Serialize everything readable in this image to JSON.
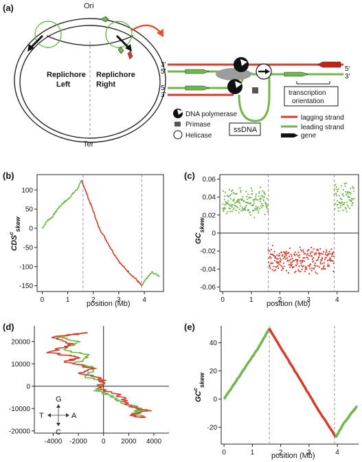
{
  "panels": {
    "a": {
      "letter": "(a)",
      "ori": "Ori",
      "ter": "Ter",
      "replichore_left": [
        "Replichore",
        "Left"
      ],
      "replichore_right": [
        "Replichore",
        "Right"
      ],
      "strand_labels": {
        "top_left_3": "3'",
        "top_left_5": "5'",
        "bot_left_5": "5'",
        "bot_left_3": "3'",
        "right_5": "5'",
        "right_3": "3'"
      },
      "transcription": [
        "transcription",
        "orientation"
      ],
      "ssdna": "ssDNA",
      "legend": {
        "dna_polymerase": "DNA polymerase",
        "primase": "Primase",
        "helicase": "Helicase",
        "lagging": "lagging strand",
        "leading": "leading strand",
        "gene": "gene"
      },
      "colors": {
        "lagging": "#d63a2a",
        "leading": "#6cb84a"
      }
    },
    "b": {
      "letter": "(b)",
      "xlabel": "position (Mb)",
      "ylabel_main": "CDS",
      "ylabel_sup": "c",
      "ylabel_sub": "skew"
    },
    "c": {
      "letter": "(c)",
      "xlabel": "position (Mb)",
      "ylabel_main": "GC",
      "ylabel_sub": "skew"
    },
    "d": {
      "letter": "(d)",
      "compass": {
        "g": "G",
        "t": "T",
        "a": "A",
        "c": "C"
      }
    },
    "e": {
      "letter": "(e)",
      "xlabel": "position (Mb)",
      "ylabel_main": "GC",
      "ylabel_sup": "c",
      "ylabel_sub": "skew"
    }
  },
  "chart_data": [
    {
      "id": "b",
      "type": "line",
      "xlim": [
        -0.2,
        4.75
      ],
      "ylim": [
        -165,
        140
      ],
      "xticks": [
        0,
        1,
        2,
        3,
        4
      ],
      "yticks": [
        -150,
        -100,
        -50,
        0,
        50,
        100
      ],
      "vlines": [
        1.6,
        3.9
      ],
      "series": [
        {
          "color": "#6cb84a",
          "x": [
            0,
            0.2,
            0.4,
            0.6,
            0.8,
            1.0,
            1.2,
            1.4,
            1.55
          ],
          "y": [
            0,
            20,
            30,
            50,
            65,
            75,
            90,
            105,
            125
          ]
        },
        {
          "color": "#d63a2a",
          "x": [
            1.55,
            1.8,
            2.0,
            2.2,
            2.5,
            2.8,
            3.1,
            3.4,
            3.7,
            3.9
          ],
          "y": [
            125,
            80,
            45,
            5,
            -30,
            -65,
            -95,
            -115,
            -135,
            -150
          ]
        },
        {
          "color": "#6cb84a",
          "x": [
            3.9,
            4.1,
            4.3,
            4.6
          ],
          "y": [
            -150,
            -130,
            -115,
            -125
          ]
        }
      ]
    },
    {
      "id": "c",
      "type": "scatter",
      "xlim": [
        -0.1,
        4.75
      ],
      "ylim": [
        -0.065,
        0.065
      ],
      "xticks": [
        0,
        1,
        2,
        3,
        4
      ],
      "yticks": [
        -0.06,
        -0.04,
        -0.02,
        0,
        0.02,
        0.04,
        0.06
      ],
      "vlines": [
        1.6,
        3.9
      ],
      "bands": [
        {
          "color": "#6cb84a",
          "x_from": 0.0,
          "x_to": 1.6,
          "mean": 0.035,
          "spread": 0.018
        },
        {
          "color": "#d63a2a",
          "x_from": 1.6,
          "x_to": 3.9,
          "mean": -0.03,
          "spread": 0.017
        },
        {
          "color": "#6cb84a",
          "x_from": 3.9,
          "x_to": 4.6,
          "mean": 0.04,
          "spread": 0.018
        }
      ]
    },
    {
      "id": "d",
      "type": "line",
      "xlim": [
        -5500,
        5200
      ],
      "ylim": [
        -21000,
        27000
      ],
      "xticks": [
        -4000,
        -2000,
        0,
        2000,
        4000
      ],
      "yticks": [
        -20000,
        -10000,
        0,
        10000,
        20000
      ],
      "series": [
        {
          "color": "#6cb84a",
          "x": [
            -1500,
            -3500,
            -2000,
            -3200,
            -1000,
            -2200,
            -500,
            -1500,
            200,
            -500,
            800,
            1800,
            3000,
            2500,
            3200
          ],
          "y": [
            24000,
            22000,
            20000,
            16000,
            14000,
            10000,
            8000,
            4000,
            2000,
            -2000,
            -5000,
            -8000,
            -10000,
            -12000,
            -14000
          ]
        },
        {
          "color": "#d63a2a",
          "x": [
            -1200,
            -4000,
            -2500,
            -4200,
            -2000,
            -3000,
            -1000,
            -1800,
            0,
            -300,
            1200,
            2200,
            3500,
            2000,
            3300
          ],
          "y": [
            24000,
            22000,
            19000,
            15000,
            13000,
            11000,
            8000,
            6000,
            3000,
            -1000,
            -4000,
            -9000,
            -11000,
            -13000,
            -14000
          ]
        }
      ]
    },
    {
      "id": "e",
      "type": "line",
      "xlim": [
        -0.1,
        4.75
      ],
      "ylim": [
        -32,
        52
      ],
      "xticks": [
        0,
        1,
        2,
        3,
        4
      ],
      "yticks": [
        -20,
        0,
        20,
        40
      ],
      "vlines": [
        1.6,
        3.9
      ],
      "series": [
        {
          "color": "#6cb84a",
          "x": [
            0,
            0.4,
            0.8,
            1.2,
            1.6
          ],
          "y": [
            0,
            12,
            24,
            36,
            50
          ]
        },
        {
          "color": "#d63a2a",
          "x": [
            1.6,
            2.2,
            2.8,
            3.4,
            3.95
          ],
          "y": [
            50,
            30,
            10,
            -10,
            -27
          ]
        },
        {
          "color": "#6cb84a",
          "x": [
            3.95,
            4.2,
            4.5,
            4.7
          ],
          "y": [
            -27,
            -18,
            -10,
            -5
          ]
        }
      ]
    }
  ]
}
